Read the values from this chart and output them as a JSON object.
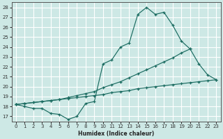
{
  "xlabel": "Humidex (Indice chaleur)",
  "bg_color": "#cde8e5",
  "grid_color": "#ffffff",
  "line_color": "#1a6b60",
  "x_values": [
    0,
    1,
    2,
    3,
    4,
    5,
    6,
    7,
    8,
    9,
    10,
    11,
    12,
    13,
    14,
    15,
    16,
    17,
    18,
    19,
    20,
    21,
    22,
    23
  ],
  "line_curve": [
    18.2,
    18.0,
    17.8,
    17.8,
    17.3,
    17.2,
    16.7,
    17.0,
    18.3,
    18.5,
    22.3,
    22.7,
    24.0,
    24.4,
    27.3,
    28.0,
    27.3,
    27.5,
    26.2,
    24.6,
    23.8,
    22.3,
    21.2,
    20.7
  ],
  "line_mid_x": [
    0,
    1,
    2,
    3,
    4,
    5,
    6,
    7,
    8,
    9,
    10,
    11,
    12,
    13,
    14,
    15,
    16,
    17,
    18,
    19,
    20
  ],
  "line_mid_y": [
    18.2,
    18.3,
    18.4,
    18.5,
    18.6,
    18.7,
    18.9,
    19.1,
    19.3,
    19.5,
    19.9,
    20.2,
    20.5,
    20.9,
    21.3,
    21.7,
    22.1,
    22.5,
    22.9,
    23.4,
    23.8
  ],
  "line_bot_x": [
    0,
    1,
    2,
    3,
    4,
    5,
    6,
    7,
    8,
    9,
    10,
    11,
    12,
    13,
    14,
    15,
    16,
    17,
    18,
    19,
    20,
    21,
    22,
    23
  ],
  "line_bot_y": [
    18.2,
    18.3,
    18.4,
    18.5,
    18.6,
    18.7,
    18.8,
    18.9,
    19.0,
    19.1,
    19.2,
    19.4,
    19.5,
    19.6,
    19.8,
    19.9,
    20.0,
    20.1,
    20.2,
    20.3,
    20.4,
    20.5,
    20.6,
    20.7
  ],
  "ylim": [
    16.5,
    28.5
  ],
  "xlim": [
    -0.5,
    23.5
  ],
  "yticks": [
    17,
    18,
    19,
    20,
    21,
    22,
    23,
    24,
    25,
    26,
    27,
    28
  ],
  "xticks": [
    0,
    1,
    2,
    3,
    4,
    5,
    6,
    7,
    8,
    9,
    10,
    11,
    12,
    13,
    14,
    15,
    16,
    17,
    18,
    19,
    20,
    21,
    22,
    23
  ]
}
